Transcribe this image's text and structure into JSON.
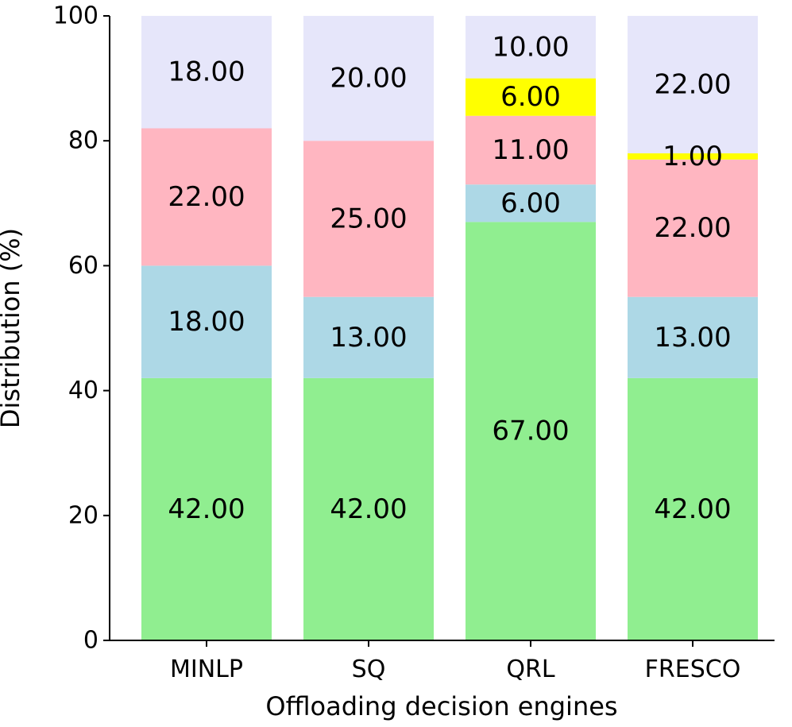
{
  "chart_data": {
    "type": "bar",
    "stacked": true,
    "categories": [
      "MINLP",
      "SQ",
      "QRL",
      "FRESCO"
    ],
    "series": [
      {
        "values": [
          42,
          42,
          67,
          42
        ],
        "labels": [
          "42.00",
          "42.00",
          "67.00",
          "42.00"
        ],
        "color": "#90ee90"
      },
      {
        "values": [
          18,
          13,
          6,
          13
        ],
        "labels": [
          "18.00",
          "13.00",
          "6.00",
          "13.00"
        ],
        "color": "#add8e6"
      },
      {
        "values": [
          22,
          25,
          11,
          22
        ],
        "labels": [
          "22.00",
          "25.00",
          "11.00",
          "22.00"
        ],
        "color": "#ffb6c1"
      },
      {
        "values": [
          0,
          0,
          6,
          1
        ],
        "labels": [
          "",
          "",
          "6.00",
          "1.00"
        ],
        "color": "#ffff00"
      },
      {
        "values": [
          18,
          20,
          10,
          22
        ],
        "labels": [
          "18.00",
          "20.00",
          "10.00",
          "22.00"
        ],
        "color": "#e6e6fa"
      }
    ],
    "xlabel": "Offloading decision engines",
    "ylabel": "Distribution (%)",
    "ylim": [
      0,
      100
    ],
    "yticks": [
      0,
      20,
      40,
      60,
      80,
      100
    ],
    "grid": false,
    "legend": "none"
  }
}
